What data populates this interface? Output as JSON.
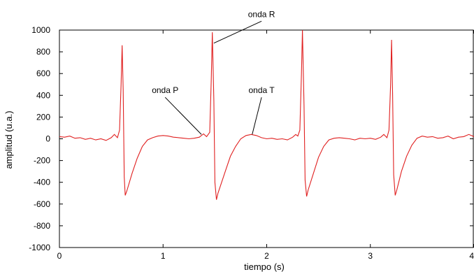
{
  "chart_data": {
    "type": "line",
    "title": "",
    "xlabel": "tiempo (s)",
    "ylabel": "amplitud (u.a.)",
    "xlim": [
      0,
      4
    ],
    "ylim": [
      -1000,
      1000
    ],
    "xticks": [
      0,
      1,
      2,
      3,
      4
    ],
    "yticks": [
      -1000,
      -800,
      -600,
      -400,
      -200,
      0,
      200,
      400,
      600,
      800,
      1000
    ],
    "x_tick_labels": [
      "0",
      "1",
      "2",
      "3",
      "4"
    ],
    "y_tick_labels": [
      "-1000",
      "-800",
      "-600",
      "-400",
      "-200",
      "0",
      "200",
      "400",
      "600",
      "800",
      "1000"
    ],
    "grid": false,
    "line_color": "#e02020",
    "series": [
      {
        "points": [
          [
            0.0,
            20
          ],
          [
            0.05,
            15
          ],
          [
            0.1,
            25
          ],
          [
            0.15,
            5
          ],
          [
            0.2,
            10
          ],
          [
            0.25,
            -5
          ],
          [
            0.3,
            5
          ],
          [
            0.35,
            -10
          ],
          [
            0.4,
            0
          ],
          [
            0.45,
            -15
          ],
          [
            0.5,
            10
          ],
          [
            0.53,
            40
          ],
          [
            0.56,
            10
          ],
          [
            0.58,
            80
          ],
          [
            0.595,
            500
          ],
          [
            0.605,
            860
          ],
          [
            0.615,
            450
          ],
          [
            0.625,
            -350
          ],
          [
            0.635,
            -520
          ],
          [
            0.65,
            -480
          ],
          [
            0.7,
            -320
          ],
          [
            0.75,
            -180
          ],
          [
            0.8,
            -70
          ],
          [
            0.85,
            -10
          ],
          [
            0.9,
            10
          ],
          [
            0.95,
            25
          ],
          [
            1.0,
            30
          ],
          [
            1.05,
            25
          ],
          [
            1.1,
            15
          ],
          [
            1.15,
            10
          ],
          [
            1.2,
            5
          ],
          [
            1.25,
            0
          ],
          [
            1.3,
            5
          ],
          [
            1.35,
            15
          ],
          [
            1.39,
            45
          ],
          [
            1.42,
            20
          ],
          [
            1.45,
            60
          ],
          [
            1.465,
            550
          ],
          [
            1.475,
            980
          ],
          [
            1.49,
            350
          ],
          [
            1.5,
            -400
          ],
          [
            1.515,
            -560
          ],
          [
            1.53,
            -500
          ],
          [
            1.6,
            -300
          ],
          [
            1.65,
            -160
          ],
          [
            1.7,
            -70
          ],
          [
            1.75,
            0
          ],
          [
            1.8,
            30
          ],
          [
            1.85,
            40
          ],
          [
            1.9,
            30
          ],
          [
            1.95,
            10
          ],
          [
            2.0,
            0
          ],
          [
            2.05,
            5
          ],
          [
            2.1,
            -5
          ],
          [
            2.15,
            0
          ],
          [
            2.2,
            -10
          ],
          [
            2.25,
            15
          ],
          [
            2.28,
            40
          ],
          [
            2.3,
            25
          ],
          [
            2.32,
            80
          ],
          [
            2.335,
            600
          ],
          [
            2.345,
            1000
          ],
          [
            2.36,
            300
          ],
          [
            2.37,
            -380
          ],
          [
            2.385,
            -530
          ],
          [
            2.4,
            -470
          ],
          [
            2.45,
            -320
          ],
          [
            2.5,
            -170
          ],
          [
            2.55,
            -70
          ],
          [
            2.6,
            -10
          ],
          [
            2.65,
            5
          ],
          [
            2.7,
            10
          ],
          [
            2.75,
            5
          ],
          [
            2.8,
            0
          ],
          [
            2.85,
            -10
          ],
          [
            2.9,
            5
          ],
          [
            2.95,
            0
          ],
          [
            3.0,
            5
          ],
          [
            3.05,
            -5
          ],
          [
            3.1,
            15
          ],
          [
            3.13,
            40
          ],
          [
            3.16,
            10
          ],
          [
            3.18,
            80
          ],
          [
            3.195,
            500
          ],
          [
            3.205,
            910
          ],
          [
            3.215,
            400
          ],
          [
            3.225,
            -330
          ],
          [
            3.24,
            -520
          ],
          [
            3.255,
            -470
          ],
          [
            3.3,
            -300
          ],
          [
            3.35,
            -160
          ],
          [
            3.4,
            -60
          ],
          [
            3.45,
            5
          ],
          [
            3.5,
            25
          ],
          [
            3.55,
            15
          ],
          [
            3.6,
            20
          ],
          [
            3.65,
            5
          ],
          [
            3.7,
            10
          ],
          [
            3.75,
            25
          ],
          [
            3.8,
            0
          ],
          [
            3.85,
            15
          ],
          [
            3.9,
            20
          ],
          [
            3.95,
            40
          ],
          [
            4.0,
            20
          ]
        ]
      }
    ],
    "annotations": [
      {
        "text": "onda R",
        "point": [
          1.49,
          880
        ],
        "label_at": [
          1.95,
          1120
        ]
      },
      {
        "text": "onda P",
        "point": [
          1.37,
          40
        ],
        "label_at": [
          1.02,
          420
        ]
      },
      {
        "text": "onda T",
        "point": [
          1.86,
          40
        ],
        "label_at": [
          1.95,
          420
        ]
      }
    ]
  }
}
